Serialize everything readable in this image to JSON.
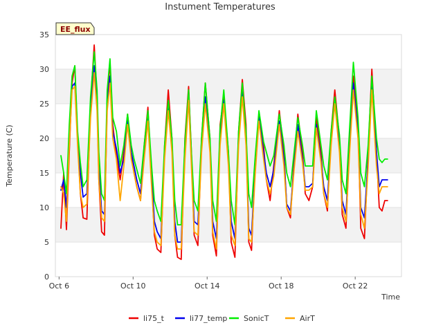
{
  "chart_data": {
    "type": "line",
    "title": "Instument Temperatures",
    "xlabel": "Time",
    "ylabel": "Temperature (C)",
    "badge": "EE_flux",
    "xlim": [
      5.8,
      24.5
    ],
    "ylim": [
      0,
      35
    ],
    "x_ticks": [
      6,
      10,
      14,
      18,
      22
    ],
    "x_tick_labels": [
      "Oct 6",
      "Oct 10",
      "Oct 14",
      "Oct 18",
      "Oct 22"
    ],
    "y_ticks": [
      0,
      5,
      10,
      15,
      20,
      25,
      30,
      35
    ],
    "grid": true,
    "legend_position": "bottom",
    "series": [
      {
        "name": "li75_t",
        "color": "#ee0000",
        "x": [
          6.1,
          6.25,
          6.4,
          6.55,
          6.7,
          6.85,
          7.0,
          7.15,
          7.3,
          7.5,
          7.7,
          7.9,
          8.05,
          8.15,
          8.3,
          8.45,
          8.6,
          8.75,
          8.9,
          9.1,
          9.3,
          9.5,
          9.7,
          9.9,
          10.05,
          10.2,
          10.4,
          10.6,
          10.8,
          11.0,
          11.15,
          11.3,
          11.5,
          11.7,
          11.9,
          12.1,
          12.25,
          12.4,
          12.6,
          12.8,
          13.0,
          13.15,
          13.3,
          13.5,
          13.7,
          13.9,
          14.15,
          14.3,
          14.5,
          14.7,
          14.9,
          15.15,
          15.3,
          15.5,
          15.7,
          15.9,
          16.1,
          16.25,
          16.4,
          16.6,
          16.8,
          17.05,
          17.2,
          17.4,
          17.6,
          17.9,
          18.15,
          18.3,
          18.5,
          18.7,
          18.9,
          19.15,
          19.3,
          19.5,
          19.7,
          19.9,
          20.15,
          20.3,
          20.5,
          20.7,
          20.9,
          21.15,
          21.3,
          21.5,
          21.7,
          21.9,
          22.15,
          22.3,
          22.5,
          22.7,
          22.9,
          23.15,
          23.3,
          23.45,
          23.6,
          23.75
        ],
        "y": [
          7.0,
          15.0,
          6.8,
          18.0,
          28.0,
          30.5,
          20.0,
          12.0,
          8.5,
          8.3,
          25.0,
          33.5,
          26.0,
          14.0,
          6.5,
          6.0,
          26.0,
          31.0,
          22.0,
          17.5,
          14.0,
          18.0,
          23.5,
          18.0,
          15.0,
          13.0,
          11.0,
          19.0,
          24.5,
          14.0,
          6.0,
          4.0,
          3.5,
          19.0,
          27.0,
          20.0,
          6.0,
          2.8,
          2.5,
          20.0,
          27.5,
          18.0,
          6.0,
          4.5,
          20.0,
          28.0,
          20.0,
          6.0,
          3.0,
          22.0,
          26.0,
          18.0,
          5.0,
          2.8,
          21.0,
          28.5,
          22.0,
          5.0,
          3.8,
          17.0,
          23.5,
          19.0,
          14.0,
          11.0,
          16.0,
          24.0,
          18.0,
          10.0,
          8.5,
          17.0,
          23.5,
          18.0,
          12.0,
          11.0,
          13.0,
          23.0,
          18.0,
          12.0,
          9.5,
          21.0,
          27.0,
          20.0,
          9.0,
          7.0,
          20.0,
          29.0,
          22.0,
          7.0,
          5.5,
          18.0,
          30.0,
          18.0,
          10.0,
          9.5,
          11.0,
          11.0
        ]
      },
      {
        "name": "li77_temp",
        "color": "#0000ee",
        "x": [
          6.1,
          6.25,
          6.4,
          6.55,
          6.7,
          6.85,
          7.0,
          7.15,
          7.3,
          7.5,
          7.7,
          7.9,
          8.05,
          8.15,
          8.3,
          8.45,
          8.6,
          8.75,
          8.9,
          9.1,
          9.3,
          9.5,
          9.7,
          9.9,
          10.05,
          10.2,
          10.4,
          10.6,
          10.8,
          11.0,
          11.15,
          11.3,
          11.5,
          11.7,
          11.9,
          12.1,
          12.25,
          12.4,
          12.6,
          12.8,
          13.0,
          13.15,
          13.3,
          13.5,
          13.7,
          13.9,
          14.15,
          14.3,
          14.5,
          14.7,
          14.9,
          15.15,
          15.3,
          15.5,
          15.7,
          15.9,
          16.1,
          16.25,
          16.4,
          16.6,
          16.8,
          17.05,
          17.2,
          17.4,
          17.6,
          17.9,
          18.15,
          18.3,
          18.5,
          18.7,
          18.9,
          19.15,
          19.3,
          19.5,
          19.7,
          19.9,
          20.15,
          20.3,
          20.5,
          20.7,
          20.9,
          21.15,
          21.3,
          21.5,
          21.7,
          21.9,
          22.15,
          22.3,
          22.5,
          22.7,
          22.9,
          23.15,
          23.3,
          23.45,
          23.6,
          23.75
        ],
        "y": [
          12.5,
          14.0,
          10.0,
          20.0,
          27.5,
          28.0,
          20.0,
          15.0,
          11.5,
          12.0,
          24.0,
          30.5,
          25.0,
          16.0,
          9.5,
          9.0,
          25.0,
          29.0,
          21.0,
          18.5,
          15.0,
          17.0,
          22.5,
          18.0,
          16.0,
          14.0,
          12.0,
          18.0,
          23.0,
          15.0,
          8.0,
          6.5,
          5.5,
          18.0,
          24.5,
          19.0,
          8.0,
          5.0,
          5.0,
          18.0,
          26.0,
          17.0,
          8.0,
          7.5,
          19.0,
          26.0,
          19.0,
          8.0,
          5.5,
          20.0,
          25.5,
          17.0,
          8.0,
          5.5,
          20.0,
          27.0,
          20.0,
          7.0,
          6.0,
          16.0,
          23.0,
          18.0,
          15.0,
          13.0,
          15.5,
          22.5,
          17.0,
          10.5,
          9.5,
          16.0,
          22.0,
          17.0,
          13.0,
          13.0,
          13.5,
          22.0,
          17.0,
          13.0,
          11.0,
          20.0,
          25.5,
          19.0,
          11.0,
          9.0,
          19.0,
          28.0,
          21.0,
          10.0,
          8.5,
          17.0,
          28.0,
          18.0,
          13.0,
          14.0,
          14.0,
          14.0
        ]
      },
      {
        "name": "SonicT",
        "color": "#00ee00",
        "x": [
          6.1,
          6.25,
          6.4,
          6.55,
          6.7,
          6.85,
          7.0,
          7.15,
          7.3,
          7.5,
          7.7,
          7.9,
          8.05,
          8.15,
          8.3,
          8.45,
          8.6,
          8.75,
          8.9,
          9.1,
          9.3,
          9.5,
          9.7,
          9.9,
          10.05,
          10.2,
          10.4,
          10.6,
          10.8,
          11.0,
          11.15,
          11.3,
          11.5,
          11.7,
          11.9,
          12.1,
          12.25,
          12.4,
          12.6,
          12.8,
          13.0,
          13.15,
          13.3,
          13.5,
          13.7,
          13.9,
          14.15,
          14.3,
          14.5,
          14.7,
          14.9,
          15.15,
          15.3,
          15.5,
          15.7,
          15.9,
          16.1,
          16.25,
          16.4,
          16.6,
          16.8,
          17.05,
          17.2,
          17.4,
          17.6,
          17.9,
          18.15,
          18.3,
          18.5,
          18.7,
          18.9,
          19.15,
          19.3,
          19.5,
          19.7,
          19.9,
          20.15,
          20.3,
          20.5,
          20.7,
          20.9,
          21.15,
          21.3,
          21.5,
          21.7,
          21.9,
          22.15,
          22.3,
          22.5,
          22.7,
          22.9,
          23.15,
          23.3,
          23.45,
          23.6,
          23.75
        ],
        "y": [
          17.5,
          15.0,
          12.0,
          22.0,
          29.0,
          30.5,
          21.0,
          16.5,
          13.0,
          14.0,
          26.0,
          32.5,
          27.0,
          18.0,
          12.0,
          11.0,
          27.0,
          31.5,
          23.0,
          21.0,
          16.0,
          19.0,
          23.5,
          19.0,
          17.0,
          15.5,
          13.5,
          19.0,
          24.0,
          16.0,
          11.0,
          9.5,
          8.0,
          19.0,
          25.5,
          20.0,
          11.0,
          7.5,
          7.5,
          19.5,
          27.0,
          18.0,
          11.0,
          9.5,
          20.0,
          28.0,
          20.0,
          11.0,
          8.0,
          21.5,
          27.0,
          18.0,
          11.0,
          7.5,
          21.0,
          28.0,
          21.0,
          12.0,
          10.0,
          17.5,
          24.0,
          19.5,
          18.0,
          16.0,
          17.5,
          23.5,
          19.0,
          15.0,
          13.0,
          18.0,
          23.0,
          19.0,
          16.0,
          16.0,
          16.0,
          24.0,
          19.0,
          16.0,
          14.0,
          21.0,
          26.0,
          20.5,
          14.0,
          12.0,
          21.5,
          31.0,
          23.0,
          15.0,
          13.0,
          19.0,
          29.0,
          20.0,
          17.0,
          16.5,
          17.0,
          17.0
        ]
      },
      {
        "name": "AirT",
        "color": "#ffa500",
        "x": [
          6.1,
          6.25,
          6.4,
          6.55,
          6.7,
          6.85,
          7.0,
          7.15,
          7.3,
          7.5,
          7.7,
          7.9,
          8.05,
          8.15,
          8.3,
          8.45,
          8.6,
          8.75,
          8.9,
          9.1,
          9.3,
          9.5,
          9.7,
          9.9,
          10.05,
          10.2,
          10.4,
          10.6,
          10.8,
          11.0,
          11.15,
          11.3,
          11.5,
          11.7,
          11.9,
          12.1,
          12.25,
          12.4,
          12.6,
          12.8,
          13.0,
          13.15,
          13.3,
          13.5,
          13.7,
          13.9,
          14.15,
          14.3,
          14.5,
          14.7,
          14.9,
          15.15,
          15.3,
          15.5,
          15.7,
          15.9,
          16.1,
          16.25,
          16.4,
          16.6,
          16.8,
          17.05,
          17.2,
          17.4,
          17.6,
          17.9,
          18.15,
          18.3,
          18.5,
          18.7,
          18.9,
          19.15,
          19.3,
          19.5,
          19.7,
          19.9,
          20.15,
          20.3,
          20.5,
          20.7,
          20.9,
          21.15,
          21.3,
          21.5,
          21.7,
          21.9,
          22.15,
          22.3,
          22.5,
          22.7,
          22.9,
          23.15,
          23.3,
          23.45,
          23.6,
          23.75
        ],
        "y": [
          13.0,
          12.0,
          8.0,
          19.0,
          27.0,
          27.5,
          19.0,
          12.0,
          10.0,
          10.5,
          23.0,
          29.5,
          24.0,
          14.0,
          8.5,
          8.0,
          24.0,
          28.0,
          20.0,
          17.0,
          11.0,
          16.0,
          22.0,
          17.0,
          15.0,
          13.0,
          11.0,
          17.0,
          22.5,
          13.0,
          6.5,
          5.0,
          4.5,
          17.0,
          24.0,
          18.0,
          6.0,
          4.0,
          4.0,
          17.0,
          25.5,
          16.0,
          6.5,
          6.0,
          18.0,
          25.0,
          18.0,
          6.5,
          4.0,
          19.0,
          25.0,
          16.0,
          6.0,
          4.5,
          19.0,
          26.0,
          19.0,
          5.5,
          5.0,
          15.0,
          22.5,
          17.0,
          14.0,
          12.0,
          14.5,
          22.0,
          16.0,
          10.0,
          9.0,
          15.5,
          21.0,
          16.5,
          12.5,
          12.5,
          13.0,
          21.5,
          16.5,
          12.0,
          10.0,
          19.0,
          25.0,
          18.0,
          10.0,
          8.0,
          18.0,
          27.0,
          20.0,
          9.0,
          7.0,
          16.0,
          27.0,
          16.0,
          12.0,
          13.0,
          13.0,
          13.0
        ]
      }
    ]
  }
}
